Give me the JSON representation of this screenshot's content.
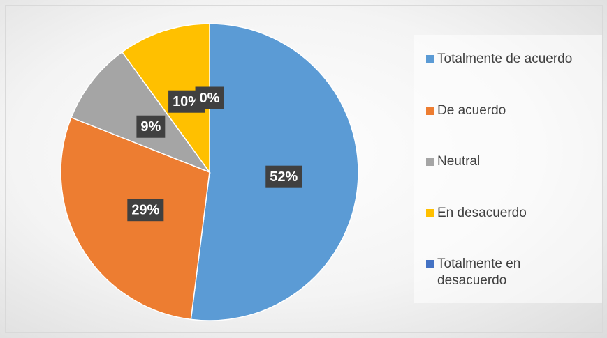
{
  "chart_data": {
    "type": "pie",
    "categories": [
      "Totalmente de acuerdo",
      "De acuerdo",
      "Neutral",
      "En desacuerdo",
      "Totalmente en desacuerdo"
    ],
    "values": [
      52,
      29,
      9,
      10,
      0
    ],
    "value_labels": [
      "52%",
      "29%",
      "9%",
      "10%",
      "0%"
    ],
    "colors": [
      "#5b9bd5",
      "#ed7d31",
      "#a5a5a5",
      "#ffc000",
      "#4472c4"
    ],
    "legend": "right"
  }
}
